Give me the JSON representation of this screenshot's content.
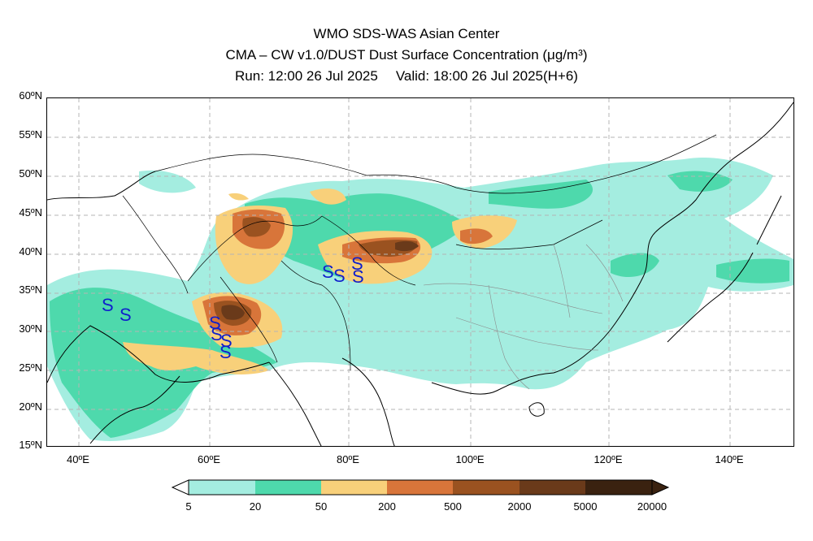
{
  "title": {
    "line1": "WMO SDS-WAS Asian Center",
    "line2": "CMA – CW v1.0/DUST Dust Surface Concentration (μg/m³)",
    "run": "Run: 12:00 26 Jul 2025",
    "valid": "Valid: 18:00 26 Jul 2025(H+6)"
  },
  "axes": {
    "lat_labels": [
      "60ºN",
      "55ºN",
      "50ºN",
      "45ºN",
      "40ºN",
      "35ºN",
      "30ºN",
      "25ºN",
      "20ºN",
      "15ºN"
    ],
    "lon_labels": [
      "40ºE",
      "60ºE",
      "80ºE",
      "100ºE",
      "120ºE",
      "140ºE"
    ],
    "lat_range": [
      15,
      60
    ],
    "lon_range": [
      35,
      150
    ]
  },
  "legend": {
    "labels": [
      "5",
      "20",
      "50",
      "200",
      "500",
      "2000",
      "5000",
      "20000"
    ],
    "colors": [
      "#a4ede0",
      "#4ed9ac",
      "#f8d07a",
      "#d8753a",
      "#9a5220",
      "#6a3a1a",
      "#3a2210"
    ]
  },
  "dust_storm_symbol": "S"
}
